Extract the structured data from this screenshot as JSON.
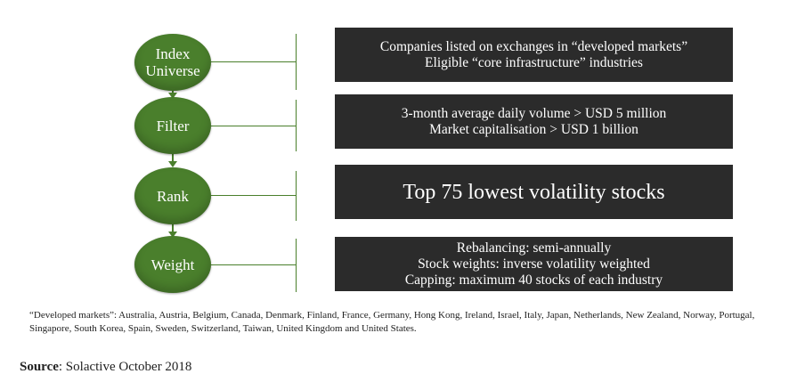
{
  "steps": [
    {
      "label": "Index\nUniverse",
      "lines": [
        "Companies listed on exchanges in “developed markets”",
        "Eligible “core infrastructure” industries"
      ]
    },
    {
      "label": "Filter",
      "lines": [
        "3-month average daily volume > USD 5 million",
        "Market capitalisation > USD 1 billion"
      ]
    },
    {
      "label": "Rank",
      "lines": [
        "Top 75 lowest volatility stocks"
      ]
    },
    {
      "label": "Weight",
      "lines": [
        "Rebalancing: semi-annually",
        "Stock weights: inverse volatility weighted",
        "Capping: maximum 40 stocks of each industry"
      ]
    }
  ],
  "footnote": "“Developed markets”:  Australia, Austria, Belgium, Canada, Denmark, Finland, France, Germany, Hong Kong, Ireland, Israel, Italy, Japan, Netherlands, New Zealand, Norway, Portugal, Singapore, South Korea, Spain, Sweden, Switzerland, Taiwan, United Kingdom and United States.",
  "source": {
    "label": "Source",
    "text": ": Solactive October 2018"
  },
  "colors": {
    "circle": "#4a7f2c",
    "box": "#2b2b2b"
  }
}
